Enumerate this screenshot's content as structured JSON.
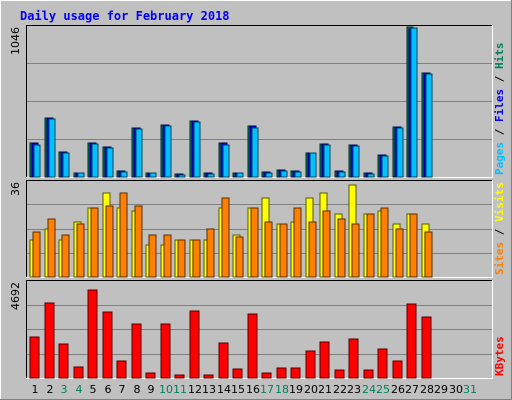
{
  "title": "Daily usage for February 2018",
  "colors": {
    "background": "#C0C0C0",
    "plot_bg": "#C0C0C0",
    "grid": "#808080",
    "hits": "#00805C",
    "files": "#0000FF",
    "pages": "#00C0FF",
    "visits": "#FFFF00",
    "sites": "#FF8000",
    "kbytes": "#FF0000",
    "title": "#0000FF",
    "weekend_label": "#00805C",
    "weekday_label": "#000000"
  },
  "chart_data": [
    {
      "type": "bar",
      "panel": "top",
      "ymax_label": "1046",
      "ylim": [
        0,
        1046
      ],
      "categories": [
        "1",
        "2",
        "3",
        "4",
        "5",
        "6",
        "7",
        "8",
        "9",
        "10",
        "11",
        "12",
        "13",
        "14",
        "15",
        "16",
        "17",
        "18",
        "19",
        "20",
        "21",
        "22",
        "23",
        "24",
        "25",
        "26",
        "27",
        "28",
        "29",
        "30",
        "31"
      ],
      "weekend_days": [
        3,
        4,
        10,
        11,
        17,
        18,
        24,
        25,
        31
      ],
      "labels_right": [
        {
          "text": "Hits",
          "color": "#00805C"
        },
        {
          "text": " / ",
          "color": "#000000"
        },
        {
          "text": "Files",
          "color": "#0000FF"
        },
        {
          "text": " / ",
          "color": "#000000"
        },
        {
          "text": "Pages",
          "color": "#00C0FF"
        }
      ],
      "series": [
        {
          "name": "Hits",
          "color": "#00805C",
          "values": [
            235,
            413,
            176,
            30,
            237,
            210,
            40,
            341,
            30,
            365,
            18,
            392,
            28,
            238,
            30,
            353,
            35,
            48,
            40,
            170,
            230,
            40,
            220,
            28,
            150,
            346,
            1046,
            725,
            0,
            0,
            0
          ]
        },
        {
          "name": "Files",
          "color": "#0000FF",
          "values": [
            235,
            413,
            176,
            30,
            237,
            210,
            40,
            341,
            30,
            365,
            18,
            392,
            28,
            238,
            30,
            353,
            35,
            48,
            40,
            170,
            230,
            40,
            220,
            28,
            150,
            346,
            1030,
            725,
            0,
            0,
            0
          ]
        },
        {
          "name": "Pages",
          "color": "#00C0FF",
          "values": [
            225,
            405,
            170,
            25,
            228,
            200,
            35,
            335,
            25,
            355,
            15,
            385,
            22,
            220,
            25,
            345,
            30,
            40,
            35,
            165,
            222,
            35,
            213,
            22,
            145,
            340,
            1036,
            720,
            0,
            0,
            0
          ]
        }
      ]
    },
    {
      "type": "bar",
      "panel": "middle",
      "ymax_label": "36",
      "ylim": [
        0,
        36
      ],
      "labels_right": [
        {
          "text": "Visits",
          "color": "#FFFF00"
        },
        {
          "text": " / ",
          "color": "#000000"
        },
        {
          "text": "Sites",
          "color": "#FF8000"
        }
      ],
      "series": [
        {
          "name": "Visits",
          "color": "#FFFF00",
          "values": [
            14,
            18,
            14,
            21,
            26,
            32,
            26,
            25,
            12,
            12,
            14,
            14,
            14,
            26,
            16,
            26,
            30,
            20,
            21,
            30,
            32,
            24,
            35,
            24,
            25,
            20,
            24,
            20,
            0,
            0,
            0
          ]
        },
        {
          "name": "Sites",
          "color": "#FF8000",
          "values": [
            17,
            22,
            16,
            20,
            26,
            27,
            32,
            27,
            16,
            16,
            14,
            14,
            18,
            30,
            15,
            26,
            21,
            20,
            26,
            21,
            25,
            22,
            20,
            24,
            26,
            18,
            24,
            17,
            0,
            0,
            0
          ]
        }
      ]
    },
    {
      "type": "bar",
      "panel": "bottom",
      "ymax_label": "4692",
      "ylim": [
        0,
        4692
      ],
      "labels_right": [
        {
          "text": "KBytes",
          "color": "#FF0000"
        }
      ],
      "series": [
        {
          "name": "KBytes",
          "color": "#FF0000",
          "values": [
            2000,
            3650,
            1650,
            520,
            4310,
            3250,
            830,
            2650,
            250,
            2650,
            160,
            3280,
            150,
            1700,
            450,
            3120,
            230,
            500,
            480,
            1300,
            1770,
            380,
            1920,
            370,
            1420,
            830,
            3600,
            3000,
            0,
            0,
            0
          ]
        }
      ]
    }
  ]
}
